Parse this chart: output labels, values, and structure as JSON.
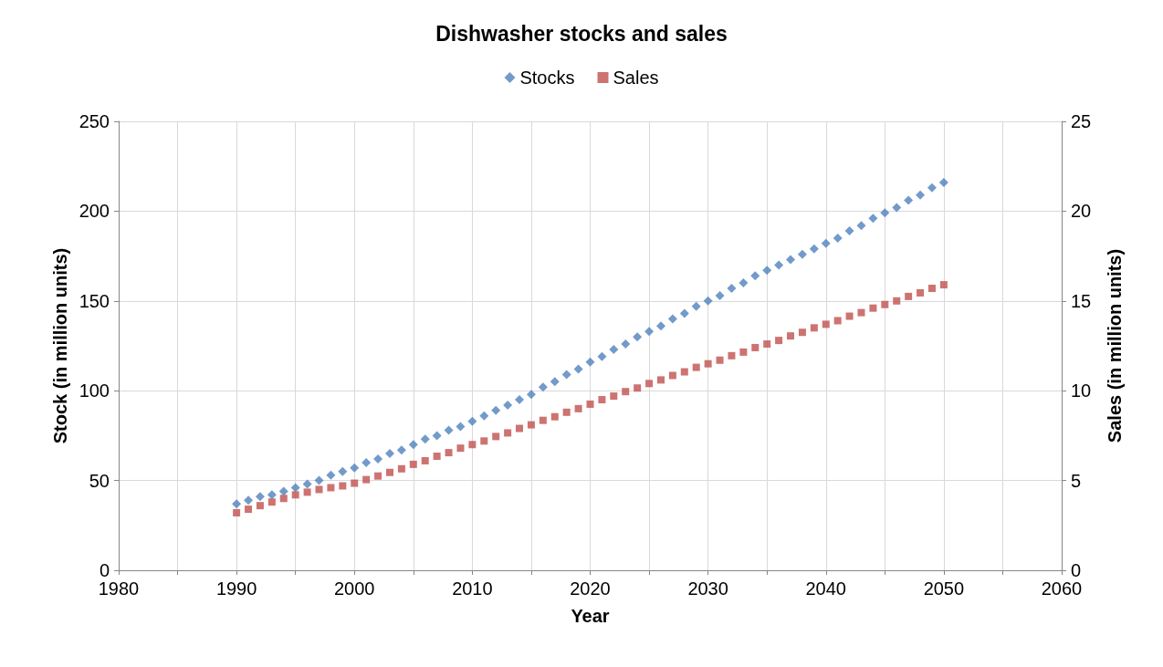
{
  "chart_data": {
    "type": "scatter",
    "title": "Dishwasher stocks and sales",
    "xlabel": "Year",
    "ylabel": "Stock (in million units)",
    "y2label": "Sales (in million units)",
    "x": [
      1990,
      1991,
      1992,
      1993,
      1994,
      1995,
      1996,
      1997,
      1998,
      1999,
      2000,
      2001,
      2002,
      2003,
      2004,
      2005,
      2006,
      2007,
      2008,
      2009,
      2010,
      2011,
      2012,
      2013,
      2014,
      2015,
      2016,
      2017,
      2018,
      2019,
      2020,
      2021,
      2022,
      2023,
      2024,
      2025,
      2026,
      2027,
      2028,
      2029,
      2030,
      2031,
      2032,
      2033,
      2034,
      2035,
      2036,
      2037,
      2038,
      2039,
      2040,
      2041,
      2042,
      2043,
      2044,
      2045,
      2046,
      2047,
      2048,
      2049,
      2050
    ],
    "series": [
      {
        "name": "Stocks",
        "color": "#4f81bd",
        "marker": "diamond",
        "values": [
          37,
          39,
          41,
          42,
          44,
          46,
          48,
          50,
          53,
          55,
          57,
          60,
          62,
          65,
          67,
          70,
          73,
          75,
          78,
          80,
          83,
          86,
          89,
          92,
          95,
          98,
          102,
          105,
          109,
          112,
          116,
          119,
          123,
          126,
          130,
          133,
          136,
          140,
          143,
          147,
          150,
          153,
          157,
          160,
          164,
          167,
          170,
          173,
          176,
          179,
          182,
          185,
          189,
          192,
          196,
          199,
          202,
          206,
          209,
          213,
          216
        ]
      },
      {
        "name": "Sales",
        "color": "#c0504d",
        "marker": "square",
        "axis": "y2",
        "values": [
          3.2,
          3.4,
          3.6,
          3.8,
          4.0,
          4.2,
          4.35,
          4.5,
          4.6,
          4.7,
          4.85,
          5.05,
          5.25,
          5.45,
          5.65,
          5.9,
          6.1,
          6.35,
          6.55,
          6.8,
          7.0,
          7.2,
          7.45,
          7.65,
          7.9,
          8.1,
          8.35,
          8.55,
          8.8,
          9.0,
          9.25,
          9.5,
          9.7,
          9.95,
          10.15,
          10.4,
          10.6,
          10.85,
          11.05,
          11.3,
          11.5,
          11.7,
          11.95,
          12.15,
          12.4,
          12.6,
          12.8,
          13.05,
          13.25,
          13.5,
          13.7,
          13.9,
          14.15,
          14.35,
          14.6,
          14.8,
          15.0,
          15.25,
          15.45,
          15.7,
          15.9
        ]
      }
    ],
    "xlim": [
      1980,
      2060
    ],
    "xticks": [
      1980,
      {
        "value": 1985,
        "label": null
      },
      2000,
      {
        "value": 1990,
        "label": "1990"
      },
      {
        "value": 1995,
        "label": null
      },
      {
        "value": 2005,
        "label": null
      },
      2010,
      {
        "value": 2015,
        "label": null
      },
      2020,
      {
        "value": 2025,
        "label": null
      },
      2030,
      {
        "value": 2035,
        "label": null
      },
      2040,
      {
        "value": 2045,
        "label": null
      },
      2050,
      {
        "value": 2055,
        "label": null
      },
      2060
    ],
    "ylim": [
      0,
      250
    ],
    "yticks": [
      0,
      50,
      100,
      150,
      200,
      250
    ],
    "y2lim": [
      0,
      25
    ],
    "y2ticks": [
      0,
      5,
      10,
      15,
      20,
      25
    ],
    "grid": true,
    "legend": "top"
  }
}
